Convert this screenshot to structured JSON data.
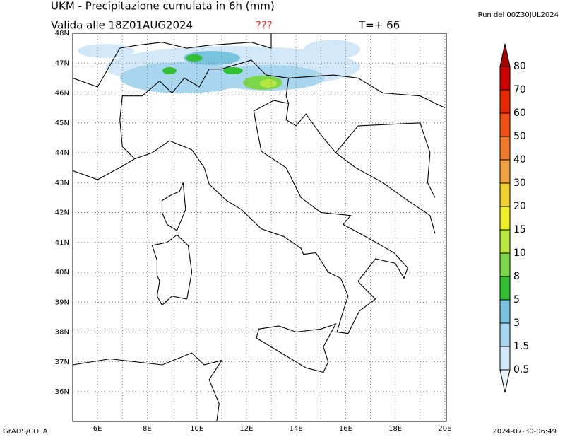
{
  "header": {
    "title": "UKM - Precipitazione cumulata in 6h (mm)",
    "valid": "Valida alle 18Z01AUG2024",
    "flag": "???",
    "step": "T=+ 66",
    "run": "Run del 00Z30JUL2024"
  },
  "map": {
    "lat_labels": [
      "48N",
      "47N",
      "46N",
      "45N",
      "44N",
      "43N",
      "42N",
      "41N",
      "40N",
      "39N",
      "38N",
      "37N",
      "36N"
    ],
    "lon_labels": [
      "6E",
      "8E",
      "10E",
      "12E",
      "14E",
      "16E",
      "18E",
      "20E"
    ]
  },
  "colorbar": {
    "levels": [
      "0.5",
      "1.5",
      "3",
      "5",
      "8",
      "10",
      "15",
      "20",
      "30",
      "40",
      "50",
      "60",
      "70",
      "80"
    ],
    "colors": [
      "#e6f2fc",
      "#d2e8f8",
      "#a8d6ee",
      "#78c4e0",
      "#30c030",
      "#7cd848",
      "#b8e840",
      "#f0f028",
      "#f0d030",
      "#f0a040",
      "#f07828",
      "#f05014",
      "#e82800",
      "#d00000",
      "#a80000"
    ]
  },
  "footer": {
    "left": "GrADS/COLA",
    "right": "2024-07-30-06:49"
  }
}
